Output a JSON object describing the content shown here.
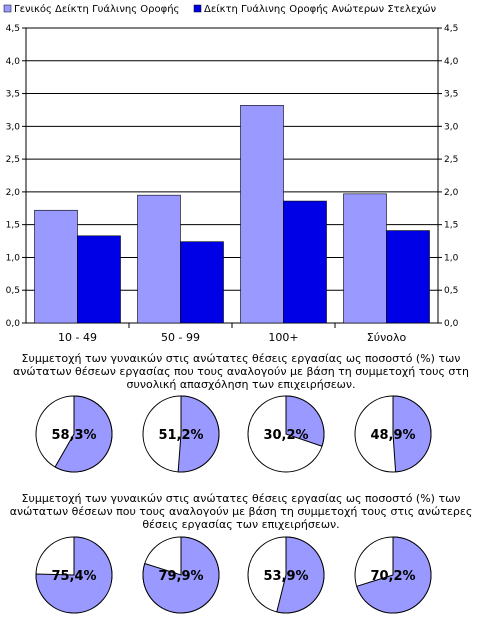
{
  "chart_data": [
    {
      "type": "bar",
      "categories": [
        "10 - 49",
        "50 - 99",
        "100+",
        "Σύνολο"
      ],
      "series": [
        {
          "name": "Γενικός Δείκτη Γυάλινης Οροφής",
          "values": [
            1.72,
            1.95,
            3.32,
            1.97
          ],
          "color": "#9999ff"
        },
        {
          "name": "Δείκτη Γυάλινης Οροφής Ανώτερων Στελεχών",
          "values": [
            1.33,
            1.24,
            1.86,
            1.41
          ],
          "color": "#0000e6"
        }
      ],
      "ylim": [
        0,
        4.5
      ],
      "yticks": [
        "0,0",
        "0,5",
        "1,0",
        "1,5",
        "2,0",
        "2,5",
        "3,0",
        "3,5",
        "4,0",
        "4,5"
      ],
      "grid": true,
      "legend_position": "top"
    },
    {
      "type": "pie",
      "title": "Συμμετοχή των γυναικών στις ανώτατες θέσεις εργασίας ως ποσοστό (%) των ανώτατων θέσεων εργασίας που τους αναλογούν με βάση τη συμμετοχή τους στη συνολική απασχόληση των επιχειρήσεων.",
      "values": [
        58.3,
        51.2,
        30.2,
        48.9
      ],
      "labels": [
        "58,3%",
        "51,2%",
        "30,2%",
        "48,9%"
      ],
      "color": "#9999ff"
    },
    {
      "type": "pie",
      "title": "Συμμετοχή των γυναικών στις ανώτατες θέσεις εργασίας ως ποσοστό (%) των ανώτατων θέσεων που τους αναλογούν με βάση τη συμμετοχή τους στις ανώτερες θέσεις εργασίας των επιχειρήσεων.",
      "values": [
        75.4,
        79.9,
        53.9,
        70.2
      ],
      "labels": [
        "75,4%",
        "79,9%",
        "53,9%",
        "70,2%"
      ],
      "color": "#9999ff"
    }
  ]
}
